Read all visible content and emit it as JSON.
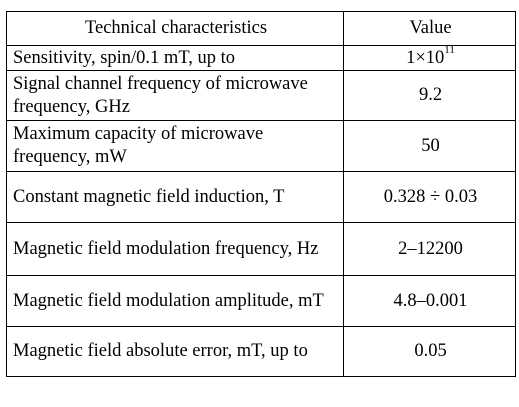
{
  "table": {
    "headers": [
      "Technical characteristics",
      "Value"
    ],
    "rows": [
      {
        "name": "Sensitivity, spin/0.1 mT, up to",
        "value_base": "1×10",
        "value_exp": "11"
      },
      {
        "name": "Signal channel frequency of microwave frequency, GHz",
        "value": "9.2"
      },
      {
        "name": "Maximum capacity of microwave frequency, mW",
        "value": "50"
      },
      {
        "name": "Constant magnetic field induction, T",
        "value": "0.328 ÷ 0.03"
      },
      {
        "name": "Magnetic field modulation frequency, Hz",
        "value": "2–12200"
      },
      {
        "name": "Magnetic field modulation amplitude, mT",
        "value": "4.8–0.001"
      },
      {
        "name": "Magnetic field absolute error, mT, up to",
        "value": "0.05"
      }
    ]
  }
}
